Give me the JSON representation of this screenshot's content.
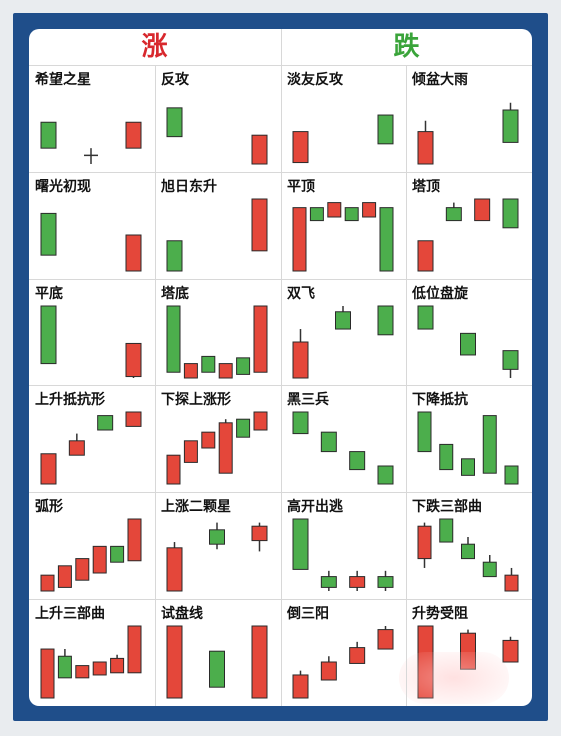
{
  "header": {
    "rise_label": "涨",
    "fall_label": "跌"
  },
  "colors": {
    "frame": "#1f4e8a",
    "bull": "#e4473a",
    "bear": "#4cae4c",
    "rise_header": "#d8282d",
    "fall_header": "#3aa43a",
    "grid": "#d8d8d8",
    "wick": "#333333"
  },
  "patterns": [
    {
      "name": "希望之星",
      "candles": [
        {
          "c": "g",
          "o": 0.42,
          "h": 0.42,
          "l": 0.78,
          "cl": 0.78
        },
        {
          "c": "d",
          "o": 0.88,
          "h": 0.78,
          "l": 1.0,
          "cl": 0.88
        },
        {
          "c": "r",
          "o": 0.78,
          "h": 0.42,
          "l": 0.78,
          "cl": 0.42
        }
      ]
    },
    {
      "name": "反攻",
      "candles": [
        {
          "c": "g",
          "o": 0.22,
          "h": 0.22,
          "l": 0.62,
          "cl": 0.62
        },
        {
          "c": "r",
          "o": 1.0,
          "h": 0.6,
          "l": 1.0,
          "cl": 0.6
        }
      ]
    },
    {
      "name": "淡友反攻",
      "candles": [
        {
          "c": "r",
          "o": 0.98,
          "h": 0.55,
          "l": 0.98,
          "cl": 0.55
        },
        {
          "c": "g",
          "o": 0.32,
          "h": 0.32,
          "l": 0.72,
          "cl": 0.72
        }
      ]
    },
    {
      "name": "倾盆大雨",
      "candles": [
        {
          "c": "r",
          "o": 1.0,
          "h": 0.4,
          "l": 1.0,
          "cl": 0.55
        },
        {
          "c": "g",
          "o": 0.25,
          "h": 0.15,
          "l": 0.7,
          "cl": 0.7
        }
      ]
    },
    {
      "name": "曙光初现",
      "candles": [
        {
          "c": "g",
          "o": 0.2,
          "h": 0.2,
          "l": 0.78,
          "cl": 0.78
        },
        {
          "c": "r",
          "o": 1.0,
          "h": 0.5,
          "l": 1.0,
          "cl": 0.5
        }
      ]
    },
    {
      "name": "旭日东升",
      "candles": [
        {
          "c": "g",
          "o": 0.58,
          "h": 0.58,
          "l": 1.0,
          "cl": 1.0
        },
        {
          "c": "r",
          "o": 0.72,
          "h": 0.0,
          "l": 0.72,
          "cl": 0.0
        }
      ]
    },
    {
      "name": "平顶",
      "candles": [
        {
          "c": "r",
          "o": 1.0,
          "h": 0.12,
          "l": 1.0,
          "cl": 0.12
        },
        {
          "c": "g",
          "o": 0.12,
          "h": 0.12,
          "l": 0.3,
          "cl": 0.3
        },
        {
          "c": "r",
          "o": 0.25,
          "h": 0.05,
          "l": 0.25,
          "cl": 0.05
        },
        {
          "c": "g",
          "o": 0.12,
          "h": 0.12,
          "l": 0.3,
          "cl": 0.3
        },
        {
          "c": "r",
          "o": 0.25,
          "h": 0.05,
          "l": 0.25,
          "cl": 0.05
        },
        {
          "c": "g",
          "o": 0.12,
          "h": 0.12,
          "l": 1.0,
          "cl": 1.0
        }
      ]
    },
    {
      "name": "塔顶",
      "candles": [
        {
          "c": "r",
          "o": 1.0,
          "h": 0.58,
          "l": 1.0,
          "cl": 0.58
        },
        {
          "c": "g",
          "o": 0.12,
          "h": 0.05,
          "l": 0.3,
          "cl": 0.3
        },
        {
          "c": "r",
          "o": 0.3,
          "h": 0.0,
          "l": 0.3,
          "cl": 0.0
        },
        {
          "c": "g",
          "o": 0.0,
          "h": 0.0,
          "l": 0.4,
          "cl": 0.4
        }
      ]
    },
    {
      "name": "平底",
      "candles": [
        {
          "c": "g",
          "o": 0.0,
          "h": 0.0,
          "l": 0.8,
          "cl": 0.8
        },
        {
          "c": "r",
          "o": 0.98,
          "h": 0.52,
          "l": 1.0,
          "cl": 0.52
        }
      ]
    },
    {
      "name": "塔底",
      "candles": [
        {
          "c": "g",
          "o": 0.0,
          "h": 0.0,
          "l": 0.92,
          "cl": 0.92
        },
        {
          "c": "r",
          "o": 1.0,
          "h": 0.8,
          "l": 1.0,
          "cl": 0.8
        },
        {
          "c": "g",
          "o": 0.7,
          "h": 0.7,
          "l": 0.92,
          "cl": 0.92
        },
        {
          "c": "r",
          "o": 1.0,
          "h": 0.8,
          "l": 1.0,
          "cl": 0.8
        },
        {
          "c": "g",
          "o": 0.72,
          "h": 0.72,
          "l": 0.95,
          "cl": 0.95
        },
        {
          "c": "r",
          "o": 0.92,
          "h": 0.0,
          "l": 0.92,
          "cl": 0.0
        }
      ]
    },
    {
      "name": "双飞",
      "candles": [
        {
          "c": "r",
          "o": 1.0,
          "h": 0.32,
          "l": 1.0,
          "cl": 0.5
        },
        {
          "c": "g",
          "o": 0.08,
          "h": 0.0,
          "l": 0.32,
          "cl": 0.32
        },
        {
          "c": "g",
          "o": 0.0,
          "h": 0.0,
          "l": 0.4,
          "cl": 0.4
        }
      ]
    },
    {
      "name": "低位盘旋",
      "candles": [
        {
          "c": "g",
          "o": 0.0,
          "h": 0.0,
          "l": 0.32,
          "cl": 0.32
        },
        {
          "c": "g",
          "o": 0.38,
          "h": 0.38,
          "l": 0.68,
          "cl": 0.68
        },
        {
          "c": "g",
          "o": 0.62,
          "h": 0.62,
          "l": 1.0,
          "cl": 0.88
        }
      ]
    },
    {
      "name": "上升抵抗形",
      "candles": [
        {
          "c": "r",
          "o": 1.0,
          "h": 0.58,
          "l": 1.0,
          "cl": 0.58
        },
        {
          "c": "r",
          "o": 0.6,
          "h": 0.3,
          "l": 0.6,
          "cl": 0.4
        },
        {
          "c": "g",
          "o": 0.05,
          "h": 0.05,
          "l": 0.25,
          "cl": 0.25
        },
        {
          "c": "r",
          "o": 0.2,
          "h": 0.0,
          "l": 0.2,
          "cl": 0.0
        }
      ]
    },
    {
      "name": "下探上涨形",
      "candles": [
        {
          "c": "r",
          "o": 1.0,
          "h": 0.6,
          "l": 1.0,
          "cl": 0.6
        },
        {
          "c": "r",
          "o": 0.7,
          "h": 0.4,
          "l": 0.7,
          "cl": 0.4
        },
        {
          "c": "r",
          "o": 0.5,
          "h": 0.28,
          "l": 0.5,
          "cl": 0.28
        },
        {
          "c": "r",
          "o": 0.85,
          "h": 0.1,
          "l": 0.85,
          "cl": 0.15
        },
        {
          "c": "g",
          "o": 0.1,
          "h": 0.1,
          "l": 0.35,
          "cl": 0.35
        },
        {
          "c": "r",
          "o": 0.25,
          "h": 0.0,
          "l": 0.25,
          "cl": 0.0
        }
      ]
    },
    {
      "name": "黑三兵",
      "candles": [
        {
          "c": "g",
          "o": 0.0,
          "h": 0.0,
          "l": 0.3,
          "cl": 0.3
        },
        {
          "c": "g",
          "o": 0.28,
          "h": 0.28,
          "l": 0.55,
          "cl": 0.55
        },
        {
          "c": "g",
          "o": 0.55,
          "h": 0.55,
          "l": 0.8,
          "cl": 0.8
        },
        {
          "c": "g",
          "o": 0.75,
          "h": 0.75,
          "l": 1.0,
          "cl": 1.0
        }
      ]
    },
    {
      "name": "下降抵抗",
      "candles": [
        {
          "c": "g",
          "o": 0.0,
          "h": 0.0,
          "l": 0.55,
          "cl": 0.55
        },
        {
          "c": "g",
          "o": 0.45,
          "h": 0.45,
          "l": 0.8,
          "cl": 0.8
        },
        {
          "c": "g",
          "o": 0.65,
          "h": 0.65,
          "l": 0.88,
          "cl": 0.88
        },
        {
          "c": "g",
          "o": 0.05,
          "h": 0.05,
          "l": 0.85,
          "cl": 0.85
        },
        {
          "c": "g",
          "o": 0.75,
          "h": 0.75,
          "l": 1.0,
          "cl": 1.0
        }
      ]
    },
    {
      "name": "弧形",
      "candles": [
        {
          "c": "r",
          "o": 1.0,
          "h": 0.78,
          "l": 1.0,
          "cl": 0.78
        },
        {
          "c": "r",
          "o": 0.95,
          "h": 0.65,
          "l": 0.95,
          "cl": 0.65
        },
        {
          "c": "r",
          "o": 0.85,
          "h": 0.55,
          "l": 0.85,
          "cl": 0.55
        },
        {
          "c": "r",
          "o": 0.75,
          "h": 0.38,
          "l": 0.75,
          "cl": 0.38
        },
        {
          "c": "g",
          "o": 0.38,
          "h": 0.38,
          "l": 0.6,
          "cl": 0.6
        },
        {
          "c": "r",
          "o": 0.58,
          "h": 0.0,
          "l": 0.58,
          "cl": 0.0
        }
      ]
    },
    {
      "name": "上涨二颗星",
      "candles": [
        {
          "c": "r",
          "o": 1.0,
          "h": 0.32,
          "l": 1.0,
          "cl": 0.4
        },
        {
          "c": "g",
          "o": 0.15,
          "h": 0.05,
          "l": 0.42,
          "cl": 0.35
        },
        {
          "c": "r",
          "o": 0.3,
          "h": 0.05,
          "l": 0.45,
          "cl": 0.1
        }
      ]
    },
    {
      "name": "高开出逃",
      "candles": [
        {
          "c": "g",
          "o": 0.0,
          "h": 0.0,
          "l": 0.7,
          "cl": 0.7
        },
        {
          "c": "g",
          "o": 0.8,
          "h": 0.72,
          "l": 1.0,
          "cl": 0.95
        },
        {
          "c": "r",
          "o": 0.95,
          "h": 0.72,
          "l": 1.0,
          "cl": 0.8
        },
        {
          "c": "g",
          "o": 0.8,
          "h": 0.72,
          "l": 1.0,
          "cl": 0.95
        }
      ]
    },
    {
      "name": "下跌三部曲",
      "candles": [
        {
          "c": "r",
          "o": 0.55,
          "h": 0.05,
          "l": 0.68,
          "cl": 0.1
        },
        {
          "c": "g",
          "o": 0.0,
          "h": 0.0,
          "l": 0.32,
          "cl": 0.32
        },
        {
          "c": "g",
          "o": 0.35,
          "h": 0.25,
          "l": 0.55,
          "cl": 0.55
        },
        {
          "c": "g",
          "o": 0.6,
          "h": 0.5,
          "l": 0.8,
          "cl": 0.8
        },
        {
          "c": "r",
          "o": 1.0,
          "h": 0.68,
          "l": 1.0,
          "cl": 0.78
        }
      ]
    },
    {
      "name": "上升三部曲",
      "candles": [
        {
          "c": "r",
          "o": 1.0,
          "h": 0.32,
          "l": 1.0,
          "cl": 0.32
        },
        {
          "c": "g",
          "o": 0.42,
          "h": 0.32,
          "l": 0.72,
          "cl": 0.72
        },
        {
          "c": "r",
          "o": 0.72,
          "h": 0.55,
          "l": 0.72,
          "cl": 0.55
        },
        {
          "c": "r",
          "o": 0.68,
          "h": 0.5,
          "l": 0.68,
          "cl": 0.5
        },
        {
          "c": "r",
          "o": 0.65,
          "h": 0.4,
          "l": 0.65,
          "cl": 0.45
        },
        {
          "c": "r",
          "o": 0.65,
          "h": 0.0,
          "l": 0.65,
          "cl": 0.0
        }
      ]
    },
    {
      "name": "试盘线",
      "candles": [
        {
          "c": "r",
          "o": 1.0,
          "h": 0.0,
          "l": 1.0,
          "cl": 0.0
        },
        {
          "c": "g",
          "o": 0.35,
          "h": 0.35,
          "l": 0.85,
          "cl": 0.85
        },
        {
          "c": "r",
          "o": 1.0,
          "h": 0.0,
          "l": 1.0,
          "cl": 0.0
        }
      ]
    },
    {
      "name": "倒三阳",
      "candles": [
        {
          "c": "r",
          "o": 1.0,
          "h": 0.62,
          "l": 1.0,
          "cl": 0.68
        },
        {
          "c": "r",
          "o": 0.75,
          "h": 0.42,
          "l": 0.75,
          "cl": 0.5
        },
        {
          "c": "r",
          "o": 0.52,
          "h": 0.22,
          "l": 0.52,
          "cl": 0.3
        },
        {
          "c": "r",
          "o": 0.32,
          "h": 0.0,
          "l": 0.32,
          "cl": 0.05
        }
      ]
    },
    {
      "name": "升势受阻",
      "candles": [
        {
          "c": "r",
          "o": 1.0,
          "h": 0.0,
          "l": 1.0,
          "cl": 0.0
        },
        {
          "c": "r",
          "o": 0.6,
          "h": 0.05,
          "l": 0.6,
          "cl": 0.1
        },
        {
          "c": "r",
          "o": 0.5,
          "h": 0.15,
          "l": 0.5,
          "cl": 0.2
        }
      ]
    }
  ]
}
